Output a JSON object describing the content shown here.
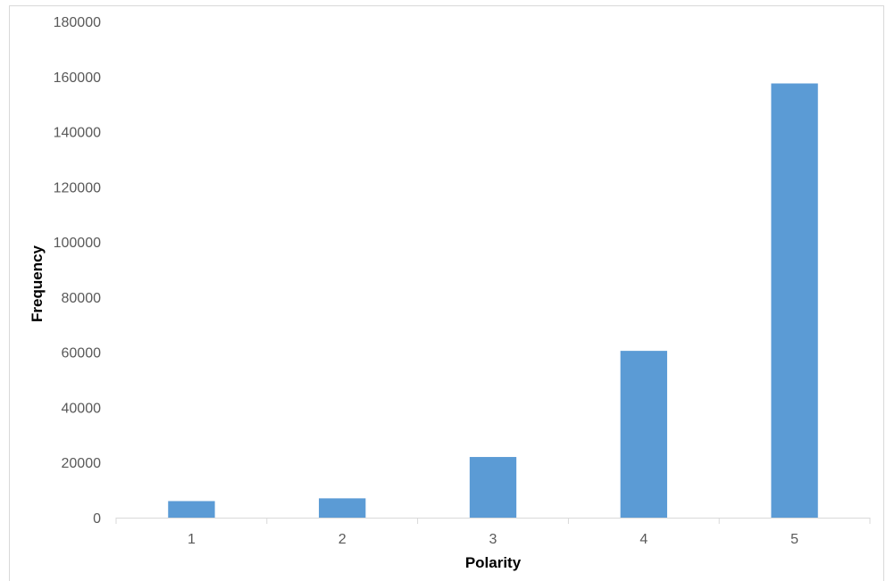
{
  "chart_data": {
    "type": "bar",
    "title": "",
    "xlabel": "Polarity",
    "ylabel": "Frequency",
    "categories": [
      "1",
      "2",
      "3",
      "4",
      "5"
    ],
    "series": [
      {
        "values": [
          6000,
          7000,
          22000,
          60500,
          157500
        ]
      }
    ],
    "ylim": [
      0,
      180000
    ],
    "yticks": [
      "0",
      "20000",
      "40000",
      "60000",
      "80000",
      "100000",
      "120000",
      "140000",
      "160000",
      "180000"
    ],
    "grid": false,
    "legend": "none",
    "colors": {
      "bar": "#5b9bd5",
      "axis": "#d9d9d9",
      "tick_text": "#595959"
    }
  }
}
